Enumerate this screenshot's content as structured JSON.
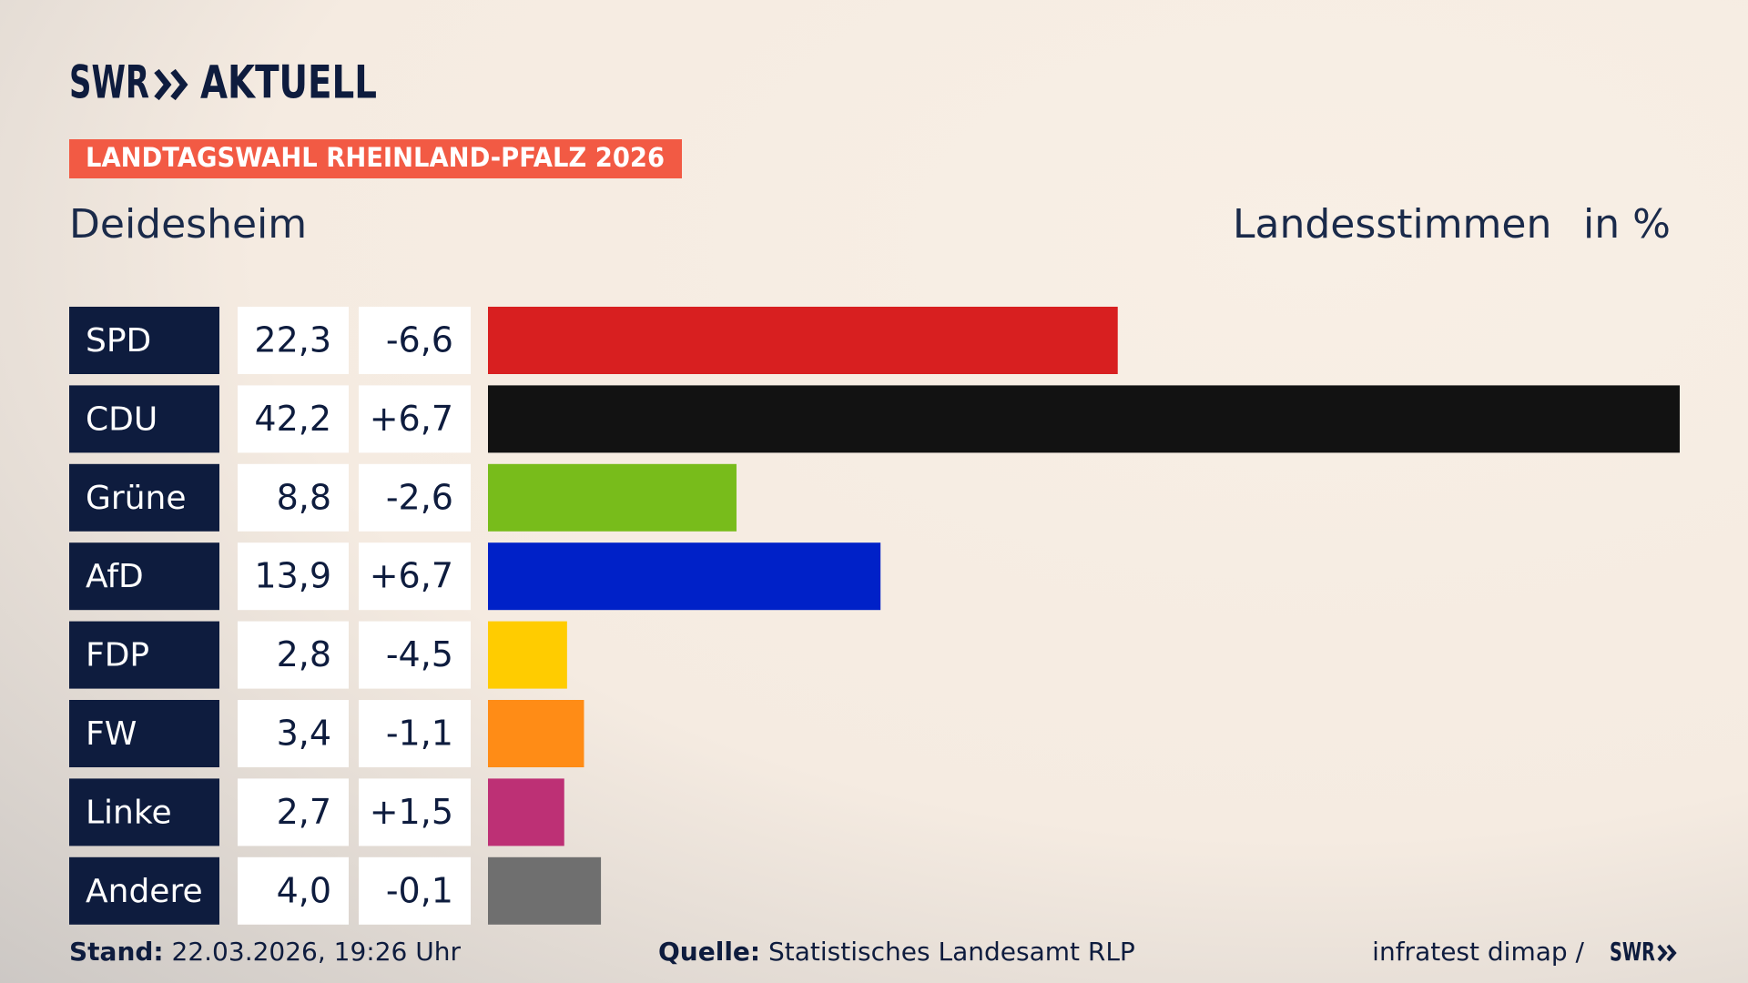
{
  "header": {
    "logo_text": "SWR",
    "logo_suffix": "AKTUELL",
    "badge": "LANDTAGSWAHL RHEINLAND-PFALZ 2026"
  },
  "chart_data": {
    "type": "bar",
    "orientation": "horizontal",
    "subtitle": "Deidesheim",
    "value_title": "Landesstimmen",
    "unit": "in %",
    "categories": [
      "SPD",
      "CDU",
      "Grüne",
      "AfD",
      "FDP",
      "FW",
      "Linke",
      "Andere"
    ],
    "values": [
      22.3,
      42.2,
      8.8,
      13.9,
      2.8,
      3.4,
      2.7,
      4.0
    ],
    "value_labels": [
      "22,3",
      "42,2",
      "8,8",
      "13,9",
      "2,8",
      "3,4",
      "2,7",
      "4,0"
    ],
    "colors": [
      "#d81f20",
      "#121212",
      "#78bc1b",
      "#0021c8",
      "#ffcc00",
      "#ff8c16",
      "#bd3075",
      "#6f6f6f"
    ],
    "changes": [
      -6.6,
      6.7,
      -2.6,
      6.7,
      -4.5,
      -1.1,
      1.5,
      -0.1
    ],
    "change_labels": [
      "-6,6",
      "+6,7",
      "-2,6",
      "+6,7",
      "-4,5",
      "-1,1",
      "+1,5",
      "-0,1"
    ]
  },
  "footer": {
    "stand_label": "Stand:",
    "stand": "22.03.2026, 19:26 Uhr",
    "source_label": "Quelle:",
    "source": "Statistisches Landesamt RLP",
    "credit": "infratest dimap /",
    "credit_logo": "SWR"
  }
}
